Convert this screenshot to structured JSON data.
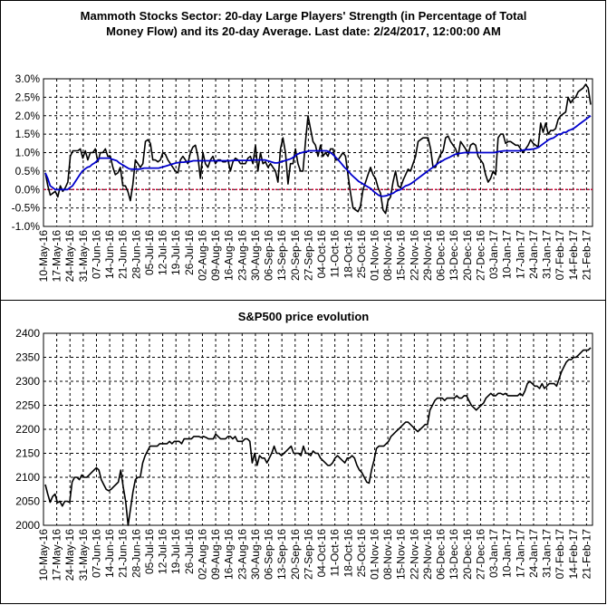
{
  "colors": {
    "background": "#ffffff",
    "strength_line": "#000000",
    "average_line": "#0000cc",
    "zero_line": "#cc0033",
    "grid": "#000000"
  },
  "date_ticks": [
    "10-May-16",
    "17-May-16",
    "24-May-16",
    "31-May-16",
    "07-Jun-16",
    "14-Jun-16",
    "21-Jun-16",
    "28-Jun-16",
    "05-Jul-16",
    "12-Jul-16",
    "19-Jul-16",
    "26-Jul-16",
    "02-Aug-16",
    "09-Aug-16",
    "16-Aug-16",
    "23-Aug-16",
    "30-Aug-16",
    "06-Sep-16",
    "13-Sep-16",
    "20-Sep-16",
    "27-Sep-16",
    "04-Oct-16",
    "11-Oct-16",
    "18-Oct-16",
    "25-Oct-16",
    "01-Nov-16",
    "08-Nov-16",
    "15-Nov-16",
    "22-Nov-16",
    "29-Nov-16",
    "06-Dec-16",
    "13-Dec-16",
    "20-Dec-16",
    "27-Dec-16",
    "03-Jan-17",
    "10-Jan-17",
    "17-Jan-17",
    "24-Jan-17",
    "31-Jan-17",
    "07-Feb-17",
    "14-Feb-17",
    "21-Feb-17"
  ],
  "chart_data": [
    {
      "type": "line",
      "title_line1": "Mammoth Stocks Sector: 20-day Large Players' Strength (in Percentage of Total",
      "title_line2": "Money Flow) and its 20-day Average. Last date: 2/24/2017, 12:00:00 AM",
      "ylim": [
        -1.0,
        3.0
      ],
      "y_ticks": [
        "3.0%",
        "2.5%",
        "2.0%",
        "1.5%",
        "1.0%",
        "0.5%",
        "0.0%",
        "-0.5%",
        "-1.0%"
      ],
      "y_tick_values": [
        3.0,
        2.5,
        2.0,
        1.5,
        1.0,
        0.5,
        0.0,
        -0.5,
        -1.0
      ],
      "x_start": "10-May-16",
      "x_end": "24-Feb-17",
      "grid": true,
      "zero_line": 0.0,
      "series": [
        {
          "key": "strength",
          "values": [
            0.45,
            0.1,
            -0.15,
            -0.1,
            -0.05,
            -0.2,
            0.1,
            -0.05,
            0.05,
            0.2,
            0.9,
            1.05,
            1.05,
            1.05,
            1.1,
            0.85,
            1.05,
            0.8,
            1.0,
            1.0,
            1.1,
            0.75,
            1.0,
            1.0,
            1.1,
            0.9,
            0.9,
            0.6,
            0.4,
            0.45,
            0.6,
            0.1,
            0.1,
            -0.05,
            -0.3,
            0.15,
            0.8,
            0.7,
            0.6,
            0.7,
            1.3,
            1.35,
            1.25,
            0.8,
            0.8,
            0.75,
            0.8,
            1.0,
            0.95,
            0.8,
            0.7,
            0.6,
            0.5,
            0.45,
            0.8,
            0.9,
            0.8,
            0.7,
            1.0,
            1.15,
            1.2,
            0.9,
            0.3,
            1.0,
            0.7,
            0.6,
            0.8,
            0.9,
            0.7,
            0.8,
            0.8,
            0.75,
            0.75,
            0.8,
            0.5,
            0.75,
            0.85,
            0.8,
            0.7,
            0.7,
            0.7,
            0.85,
            0.9,
            0.7,
            1.2,
            0.5,
            1.0,
            0.7,
            0.75,
            0.6,
            0.7,
            0.6,
            0.5,
            0.2,
            1.1,
            1.4,
            1.0,
            0.15,
            0.7,
            0.7,
            1.1,
            0.7,
            0.5,
            0.5,
            1.3,
            2.0,
            1.65,
            1.3,
            1.2,
            0.9,
            1.2,
            0.9,
            1.0,
            0.9,
            1.1,
            1.1,
            0.8,
            0.8,
            0.9,
            1.0,
            0.9,
            0.4,
            -0.1,
            -0.5,
            -0.55,
            -0.6,
            -0.45,
            0.0,
            0.2,
            0.4,
            0.6,
            0.4,
            0.3,
            0.05,
            -0.1,
            -0.55,
            -0.65,
            -0.3,
            -0.2,
            0.2,
            0.5,
            0.1,
            0.05,
            0.25,
            0.4,
            0.55,
            0.5,
            0.7,
            0.9,
            1.3,
            1.35,
            1.4,
            1.4,
            1.4,
            1.1,
            0.6,
            0.6,
            0.8,
            0.95,
            1.05,
            1.4,
            1.45,
            1.3,
            1.2,
            1.1,
            0.9,
            1.3,
            1.2,
            1.1,
            0.95,
            1.2,
            1.25,
            1.2,
            0.9,
            0.8,
            0.7,
            0.4,
            0.2,
            0.3,
            0.5,
            0.4,
            1.4,
            1.5,
            1.5,
            1.25,
            1.3,
            1.3,
            1.25,
            1.2,
            1.2,
            1.1,
            1.0,
            1.1,
            1.2,
            1.35,
            1.25,
            1.2,
            1.15,
            1.8,
            1.55,
            1.8,
            1.5,
            1.6,
            1.6,
            1.65,
            1.9,
            2.0,
            2.05,
            2.1,
            2.5,
            2.35,
            2.45,
            2.5,
            2.65,
            2.7,
            2.75,
            2.85,
            2.75,
            2.3
          ]
        },
        {
          "key": "average",
          "values": [
            0.45,
            0.3,
            0.1,
            0.05,
            0.0,
            0.0,
            0.0,
            0.0,
            0.0,
            0.0,
            0.05,
            0.1,
            0.2,
            0.3,
            0.4,
            0.5,
            0.55,
            0.6,
            0.62,
            0.68,
            0.72,
            0.78,
            0.85,
            0.85,
            0.85,
            0.85,
            0.85,
            0.82,
            0.8,
            0.78,
            0.72,
            0.68,
            0.64,
            0.6,
            0.56,
            0.55,
            0.55,
            0.55,
            0.55,
            0.56,
            0.58,
            0.58,
            0.58,
            0.58,
            0.58,
            0.58,
            0.58,
            0.6,
            0.62,
            0.64,
            0.66,
            0.68,
            0.7,
            0.72,
            0.73,
            0.74,
            0.74,
            0.75,
            0.76,
            0.76,
            0.78,
            0.78,
            0.78,
            0.78,
            0.78,
            0.78,
            0.78,
            0.78,
            0.78,
            0.78,
            0.78,
            0.78,
            0.78,
            0.78,
            0.78,
            0.78,
            0.79,
            0.79,
            0.79,
            0.79,
            0.79,
            0.79,
            0.79,
            0.79,
            0.8,
            0.8,
            0.8,
            0.8,
            0.8,
            0.8,
            0.78,
            0.76,
            0.74,
            0.72,
            0.72,
            0.74,
            0.76,
            0.78,
            0.8,
            0.82,
            0.85,
            0.9,
            0.95,
            0.98,
            1.0,
            1.02,
            1.03,
            1.05,
            1.05,
            1.05,
            1.05,
            1.05,
            1.05,
            1.05,
            1.05,
            1.02,
            0.98,
            0.92,
            0.85,
            0.78,
            0.7,
            0.62,
            0.55,
            0.48,
            0.4,
            0.34,
            0.28,
            0.22,
            0.18,
            0.14,
            0.1,
            0.06,
            0.02,
            -0.05,
            -0.1,
            -0.15,
            -0.18,
            -0.18,
            -0.17,
            -0.15,
            -0.12,
            -0.1,
            -0.05,
            -0.02,
            0.0,
            0.05,
            0.1,
            0.12,
            0.15,
            0.2,
            0.25,
            0.3,
            0.35,
            0.4,
            0.45,
            0.5,
            0.55,
            0.6,
            0.65,
            0.7,
            0.75,
            0.78,
            0.82,
            0.85,
            0.88,
            0.92,
            0.95,
            0.97,
            0.98,
            0.99,
            1.0,
            1.0,
            1.0,
            1.0,
            1.0,
            1.0,
            1.0,
            1.0,
            1.0,
            1.0,
            1.0,
            1.0,
            1.0,
            1.02,
            1.03,
            1.04,
            1.05,
            1.05,
            1.05,
            1.05,
            1.05,
            1.05,
            1.05,
            1.06,
            1.07,
            1.08,
            1.08,
            1.09,
            1.1,
            1.12,
            1.15,
            1.2,
            1.25,
            1.3,
            1.35,
            1.38,
            1.4,
            1.45,
            1.5,
            1.5,
            1.55,
            1.55,
            1.6,
            1.62,
            1.65,
            1.7,
            1.75,
            1.8,
            1.85,
            1.9,
            1.95,
            2.0
          ]
        }
      ]
    },
    {
      "type": "line",
      "title": "S&P500 price evolution",
      "ylim": [
        2000,
        2400
      ],
      "y_ticks": [
        "2400",
        "2350",
        "2300",
        "2250",
        "2200",
        "2150",
        "2100",
        "2050",
        "2000"
      ],
      "y_tick_values": [
        2400,
        2350,
        2300,
        2250,
        2200,
        2150,
        2100,
        2050,
        2000
      ],
      "x_start": "10-May-16",
      "x_end": "24-Feb-17",
      "grid": true,
      "series": [
        {
          "key": "sp500",
          "values": [
            2085,
            2065,
            2048,
            2060,
            2065,
            2047,
            2050,
            2040,
            2050,
            2050,
            2048,
            2090,
            2100,
            2100,
            2095,
            2105,
            2100,
            2100,
            2105,
            2110,
            2115,
            2120,
            2115,
            2095,
            2085,
            2075,
            2072,
            2075,
            2080,
            2085,
            2090,
            2115,
            2080,
            2050,
            2000,
            2035,
            2070,
            2095,
            2100,
            2100,
            2130,
            2145,
            2155,
            2165,
            2165,
            2165,
            2165,
            2170,
            2170,
            2170,
            2170,
            2175,
            2170,
            2175,
            2175,
            2175,
            2170,
            2180,
            2180,
            2180,
            2180,
            2185,
            2185,
            2185,
            2183,
            2185,
            2183,
            2180,
            2180,
            2180,
            2190,
            2185,
            2180,
            2180,
            2180,
            2185,
            2185,
            2180,
            2185,
            2175,
            2175,
            2175,
            2180,
            2180,
            2175,
            2130,
            2150,
            2125,
            2145,
            2140,
            2140,
            2130,
            2140,
            2150,
            2165,
            2150,
            2150,
            2145,
            2150,
            2155,
            2160,
            2165,
            2150,
            2150,
            2150,
            2145,
            2165,
            2150,
            2150,
            2145,
            2155,
            2150,
            2150,
            2140,
            2135,
            2130,
            2125,
            2125,
            2130,
            2140,
            2145,
            2140,
            2135,
            2130,
            2140,
            2140,
            2145,
            2140,
            2125,
            2115,
            2110,
            2100,
            2090,
            2088,
            2115,
            2135,
            2160,
            2165,
            2165,
            2165,
            2170,
            2175,
            2185,
            2190,
            2195,
            2200,
            2205,
            2210,
            2215,
            2215,
            2210,
            2205,
            2200,
            2195,
            2200,
            2205,
            2210,
            2210,
            2240,
            2250,
            2260,
            2265,
            2265,
            2265,
            2260,
            2265,
            2265,
            2265,
            2265,
            2270,
            2265,
            2265,
            2270,
            2270,
            2260,
            2250,
            2245,
            2240,
            2245,
            2250,
            2255,
            2265,
            2270,
            2275,
            2270,
            2270,
            2275,
            2275,
            2272,
            2275,
            2270,
            2270,
            2270,
            2270,
            2270,
            2275,
            2270,
            2280,
            2295,
            2300,
            2295,
            2290,
            2290,
            2285,
            2295,
            2285,
            2290,
            2295,
            2295,
            2295,
            2290,
            2305,
            2320,
            2330,
            2340,
            2345,
            2345,
            2350,
            2350,
            2355,
            2360,
            2365,
            2365,
            2365,
            2370
          ]
        }
      ]
    }
  ]
}
